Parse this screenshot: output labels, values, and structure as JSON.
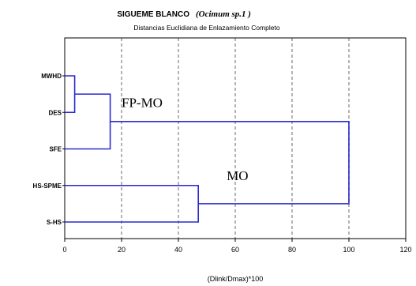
{
  "chart_data": {
    "type": "dendrogram",
    "title_main": "SIGUEME BLANCO",
    "title_species": "(Ocimum sp.1 )",
    "subtitle": "Distancias Euclidiana de Enlazamiento Completo",
    "xlabel": "(Dlink/Dmax)*100",
    "xlim": [
      0,
      120
    ],
    "x_ticks": [
      0,
      20,
      40,
      60,
      80,
      100,
      120
    ],
    "grid": true,
    "grid_style": "dashed vertical gray",
    "leaves": [
      "MWHD",
      "DES",
      "SFE",
      "HS-SPME",
      "S-HS"
    ],
    "merges": [
      {
        "left": "MWHD",
        "right": "DES",
        "height": 3.5
      },
      {
        "left": "MWHD+DES",
        "right": "SFE",
        "height": 16
      },
      {
        "left": "HS-SPME",
        "right": "S-HS",
        "height": 47
      },
      {
        "left": "MWHD+DES+SFE",
        "right": "HS-SPME+S-HS",
        "height": 100
      }
    ],
    "cluster_labels": [
      {
        "text": "FP-MO",
        "x": 20,
        "near_leaves": [
          "DES",
          "SFE"
        ]
      },
      {
        "text": "MO",
        "x": 57,
        "near_leaves": [
          "HS-SPME",
          "S-HS"
        ]
      }
    ],
    "line_color": "#2b2bd0",
    "frame_color": "#000000",
    "grid_color": "#b4b4b4"
  }
}
